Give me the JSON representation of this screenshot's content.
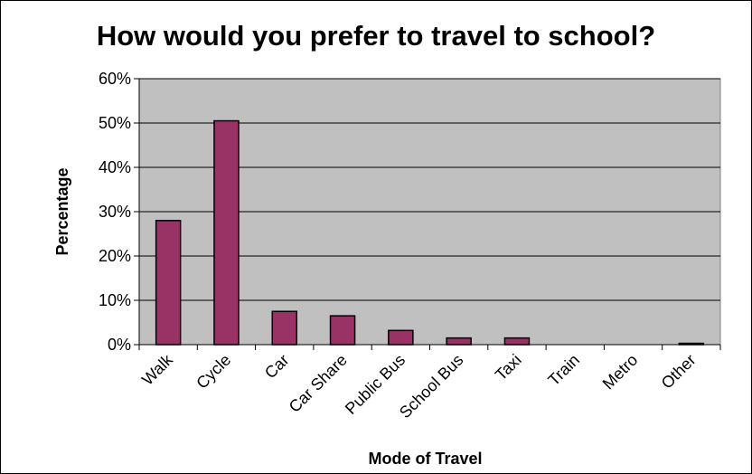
{
  "chart_data": {
    "type": "bar",
    "title": "How would you prefer to travel to school?",
    "xlabel": "Mode of Travel",
    "ylabel": "Percentage",
    "categories": [
      "Walk",
      "Cycle",
      "Car",
      "Car Share",
      "Public Bus",
      "School Bus",
      "Taxi",
      "Train",
      "Metro",
      "Other"
    ],
    "values": [
      28,
      50.5,
      7.5,
      6.5,
      3.2,
      1.5,
      1.5,
      0,
      0,
      0.3
    ],
    "ylim": [
      0,
      60
    ],
    "yticks": [
      0,
      10,
      20,
      30,
      40,
      50,
      60
    ],
    "ytick_labels": [
      "0%",
      "10%",
      "20%",
      "30%",
      "40%",
      "50%",
      "60%"
    ],
    "grid": true,
    "legend": "none",
    "colors": {
      "bar": "#993366",
      "plot_background": "#c0c0c0",
      "gridline": "#000000"
    }
  }
}
